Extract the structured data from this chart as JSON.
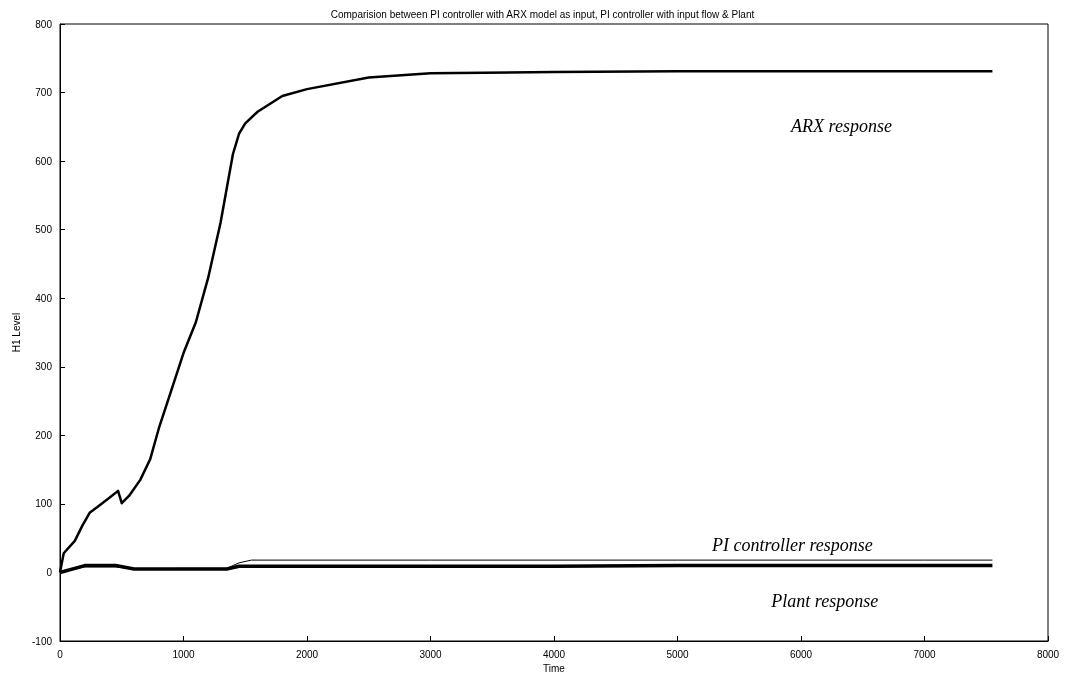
{
  "chart_data": {
    "type": "line",
    "title": "Comparision between PI controller with ARX model as input, PI controller with input flow & Plant",
    "xlabel": "Time",
    "ylabel": "H1 Level",
    "xlim": [
      0,
      8000
    ],
    "xticks": [
      0,
      1000,
      2000,
      3000,
      4000,
      5000,
      6000,
      7000,
      8000
    ],
    "ylim": [
      -100,
      800
    ],
    "yticks": [
      -100,
      0,
      100,
      200,
      300,
      400,
      500,
      600,
      700,
      800
    ],
    "grid": false,
    "legend": false,
    "marker": "none",
    "line_style": "solid",
    "series": [
      {
        "name": "ARX response",
        "color": "#000000",
        "x": [
          0,
          30,
          120,
          180,
          240,
          300,
          400,
          470,
          500,
          560,
          650,
          730,
          800,
          900,
          1000,
          1100,
          1200,
          1300,
          1350,
          1400,
          1450,
          1500,
          1600,
          1800,
          2000,
          2500,
          3000,
          4000,
          5000,
          6000,
          7000,
          7550
        ],
        "values": [
          0,
          28,
          46,
          68,
          87,
          95,
          109,
          119,
          101,
          112,
          135,
          165,
          210,
          265,
          320,
          365,
          430,
          510,
          560,
          610,
          640,
          655,
          672,
          695,
          705,
          722,
          728,
          730,
          731,
          731,
          731,
          731
        ]
      },
      {
        "name": "PI controller response",
        "color": "#000000",
        "x": [
          0,
          200,
          450,
          600,
          1000,
          1350,
          1450,
          1550,
          2000,
          3000,
          4000,
          5000,
          6000,
          7000,
          7550
        ],
        "values": [
          0,
          8,
          8,
          5,
          6,
          6,
          14,
          18,
          18,
          18,
          18,
          18,
          18,
          18,
          18
        ]
      },
      {
        "name": "Plant response",
        "color": "#000000",
        "x": [
          0,
          200,
          450,
          600,
          1000,
          1350,
          1450,
          2000,
          3000,
          4000,
          5000,
          6000,
          7000,
          7550
        ],
        "values": [
          0,
          10,
          10,
          5,
          5,
          5,
          9,
          9,
          9,
          9,
          10,
          10,
          10,
          10
        ]
      }
    ]
  }
}
